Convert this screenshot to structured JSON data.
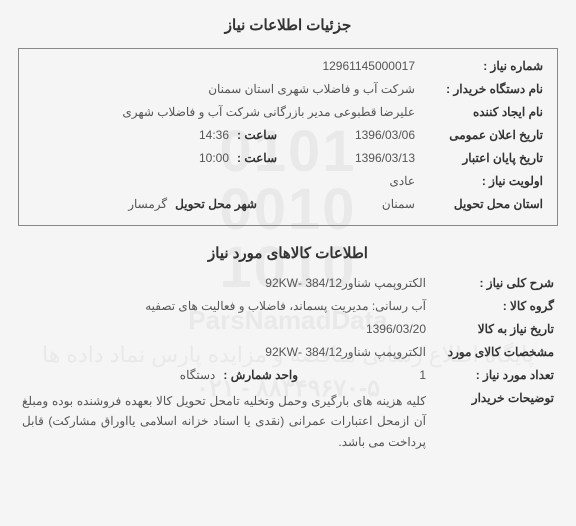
{
  "watermark": {
    "logo_lines": [
      "0101",
      "0010",
      "1010"
    ],
    "brand": "ParsNamadData",
    "tagline": "پایگاه اطلاع رسانی مناقصه و مزایده پارس نماد داده ها",
    "phone": "۰۲۱ - ۸۸۳۴۹۶۷۰-۵"
  },
  "section1_title": "جزئیات اطلاعات نیاز",
  "section2_title": "اطلاعات کالاهای مورد نیاز",
  "info": {
    "need_no_label": "شماره نیاز :",
    "need_no": "12961145000017",
    "buyer_label": "نام دستگاه خریدار :",
    "buyer": "شرکت آب و فاضلاب شهری استان سمنان",
    "creator_label": "نام ایجاد کننده",
    "creator": "علیرضا قطبوعی مدیر بازرگانی شرکت آب و فاضلاب شهری",
    "announce_date_label": "تاریخ اعلان عمومی",
    "announce_date": "1396/03/06",
    "announce_time_label": "ساعت :",
    "announce_time": "14:36",
    "expire_date_label": "تاریخ پایان اعتبار",
    "expire_date": "1396/03/13",
    "expire_time_label": "ساعت :",
    "expire_time": "10:00",
    "priority_label": "اولویت نیاز :",
    "priority": "عادی",
    "province_label": "استان محل تحویل",
    "province": "سمنان",
    "city_label": "شهر محل تحویل",
    "city": "گرمسار"
  },
  "goods": {
    "desc_label": "شرح کلی نیاز :",
    "desc": "الکتروپمپ شناور384/12  -92KW",
    "group_label": "گروه کالا :",
    "group": "آب رسانی: مدیریت پسماند، فاضلاب و فعالیت های تصفیه",
    "need_date_label": "تاریخ نیاز به کالا",
    "need_date": "1396/03/20",
    "spec_label": "مشخصات کالای مورد",
    "spec": "الکتروپمپ شناور384/12  -92KW",
    "count_label": "تعداد مورد نیاز :",
    "count": "1",
    "unit_label": "واحد شمارش :",
    "unit": "دستگاه",
    "buyer_note_label": "توضیحات خریدار",
    "buyer_note": "کلیه هزینه های بارگیری وحمل وتخلیه تامحل تحویل کالا بعهده فروشنده بوده ومبلغ آن ازمحل اعتبارات عمرانی (نقدی یا اسناد خزانه اسلامی یااوراق مشارکت) قابل پرداخت می باشد."
  }
}
